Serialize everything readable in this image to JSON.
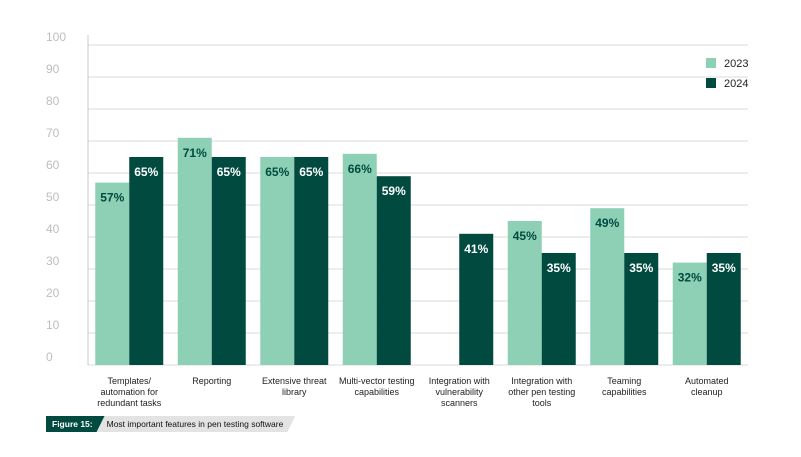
{
  "chart_data": {
    "type": "bar",
    "categories": [
      [
        "Templates/",
        "automation for",
        "redundant tasks"
      ],
      [
        "Reporting"
      ],
      [
        "Extensive threat",
        "library"
      ],
      [
        "Multi-vector testing",
        "capabilities"
      ],
      [
        "Integration with",
        "vulnerability",
        "scanners"
      ],
      [
        "Integration with",
        "other pen testing",
        "tools"
      ],
      [
        "Teaming",
        "capabilities"
      ],
      [
        "Automated",
        "cleanup"
      ]
    ],
    "series": [
      {
        "name": "2023",
        "color": "#8dd0b5",
        "label_color": "#004a3f",
        "values": [
          57,
          71,
          65,
          66,
          null,
          45,
          49,
          32
        ],
        "labels": [
          "57%",
          "71%",
          "65%",
          "66%",
          "",
          "45%",
          "49%",
          "32%"
        ]
      },
      {
        "name": "2024",
        "color": "#004a3f",
        "label_color": "#ffffff",
        "values": [
          65,
          65,
          65,
          59,
          41,
          35,
          35,
          35
        ],
        "labels": [
          "65%",
          "65%",
          "65%",
          "59%",
          "41%",
          "35%",
          "35%",
          "35%"
        ]
      }
    ],
    "ylim": [
      0,
      100
    ],
    "yticks": [
      "0",
      "10",
      "20",
      "30",
      "40",
      "50",
      "60",
      "70",
      "80",
      "90",
      "100"
    ],
    "grid": true,
    "legend": "top-right"
  },
  "caption": {
    "tag": "Figure 15:",
    "text": "Most important features in pen testing software"
  }
}
